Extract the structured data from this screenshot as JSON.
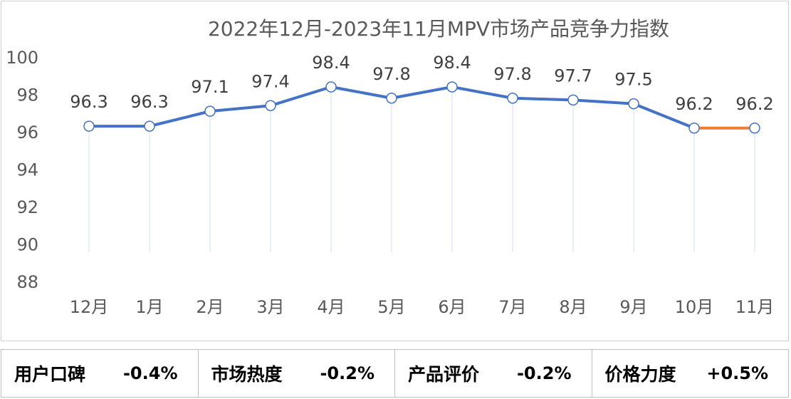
{
  "chart_data": {
    "type": "line",
    "title": "2022年12月-2023年11月MPV市场产品竞争力指数",
    "categories": [
      "12月",
      "1月",
      "2月",
      "3月",
      "4月",
      "5月",
      "6月",
      "7月",
      "8月",
      "9月",
      "10月",
      "11月"
    ],
    "values": [
      96.3,
      96.3,
      97.1,
      97.4,
      98.4,
      97.8,
      98.4,
      97.8,
      97.7,
      97.5,
      96.2,
      96.2
    ],
    "data_labels": [
      "96.3",
      "96.3",
      "97.1",
      "97.4",
      "98.4",
      "97.8",
      "98.4",
      "97.8",
      "97.7",
      "97.5",
      "96.2",
      "96.2"
    ],
    "ylim": [
      88,
      100
    ],
    "yticks": [
      "88",
      "90",
      "92",
      "94",
      "96",
      "98",
      "100"
    ],
    "series_color": "#4472C4",
    "highlight_color": "#ED7D31",
    "xlabel": "",
    "ylabel": "",
    "grid": false
  },
  "summary": [
    {
      "label": "用户口碑",
      "value": "-0.4%"
    },
    {
      "label": "市场热度",
      "value": "-0.2%"
    },
    {
      "label": "产品评价",
      "value": "-0.2%"
    },
    {
      "label": "价格力度",
      "value": "+0.5%"
    }
  ]
}
